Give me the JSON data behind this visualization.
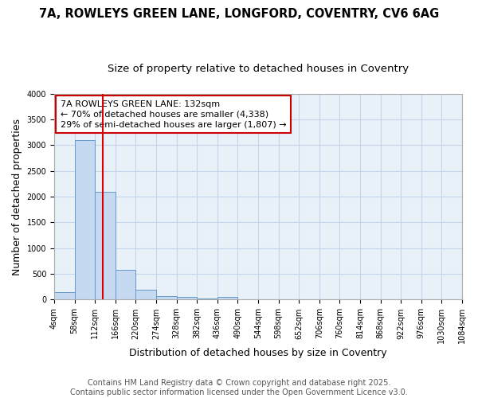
{
  "title_line1": "7A, ROWLEYS GREEN LANE, LONGFORD, COVENTRY, CV6 6AG",
  "title_line2": "Size of property relative to detached houses in Coventry",
  "xlabel": "Distribution of detached houses by size in Coventry",
  "ylabel": "Number of detached properties",
  "bin_edges": [
    4,
    58,
    112,
    166,
    220,
    274,
    328,
    382,
    436,
    490,
    544,
    598,
    652,
    706,
    760,
    814,
    868,
    922,
    976,
    1030,
    1084
  ],
  "bar_heights": [
    150,
    3100,
    2100,
    575,
    200,
    75,
    50,
    30,
    50,
    0,
    0,
    0,
    0,
    0,
    0,
    0,
    0,
    0,
    0,
    0
  ],
  "bar_color": "#c5d9f0",
  "bar_edge_color": "#6699cc",
  "grid_color": "#c5d5e8",
  "bg_color": "#e8f0f8",
  "red_line_x": 132,
  "red_line_color": "#dd0000",
  "annotation_text": "7A ROWLEYS GREEN LANE: 132sqm\n← 70% of detached houses are smaller (4,338)\n29% of semi-detached houses are larger (1,807) →",
  "annotation_box_color": "#ffffff",
  "annotation_box_edge": "#cc0000",
  "ylim": [
    0,
    4000
  ],
  "xlim": [
    4,
    1084
  ],
  "xtick_labels": [
    "4sqm",
    "58sqm",
    "112sqm",
    "166sqm",
    "220sqm",
    "274sqm",
    "328sqm",
    "382sqm",
    "436sqm",
    "490sqm",
    "544sqm",
    "598sqm",
    "652sqm",
    "706sqm",
    "760sqm",
    "814sqm",
    "868sqm",
    "922sqm",
    "976sqm",
    "1030sqm",
    "1084sqm"
  ],
  "xtick_positions": [
    4,
    58,
    112,
    166,
    220,
    274,
    328,
    382,
    436,
    490,
    544,
    598,
    652,
    706,
    760,
    814,
    868,
    922,
    976,
    1030,
    1084
  ],
  "footer_text": "Contains HM Land Registry data © Crown copyright and database right 2025.\nContains public sector information licensed under the Open Government Licence v3.0.",
  "title_fontsize": 10.5,
  "subtitle_fontsize": 9.5,
  "axis_label_fontsize": 9,
  "tick_fontsize": 7,
  "annotation_fontsize": 8,
  "footer_fontsize": 7
}
